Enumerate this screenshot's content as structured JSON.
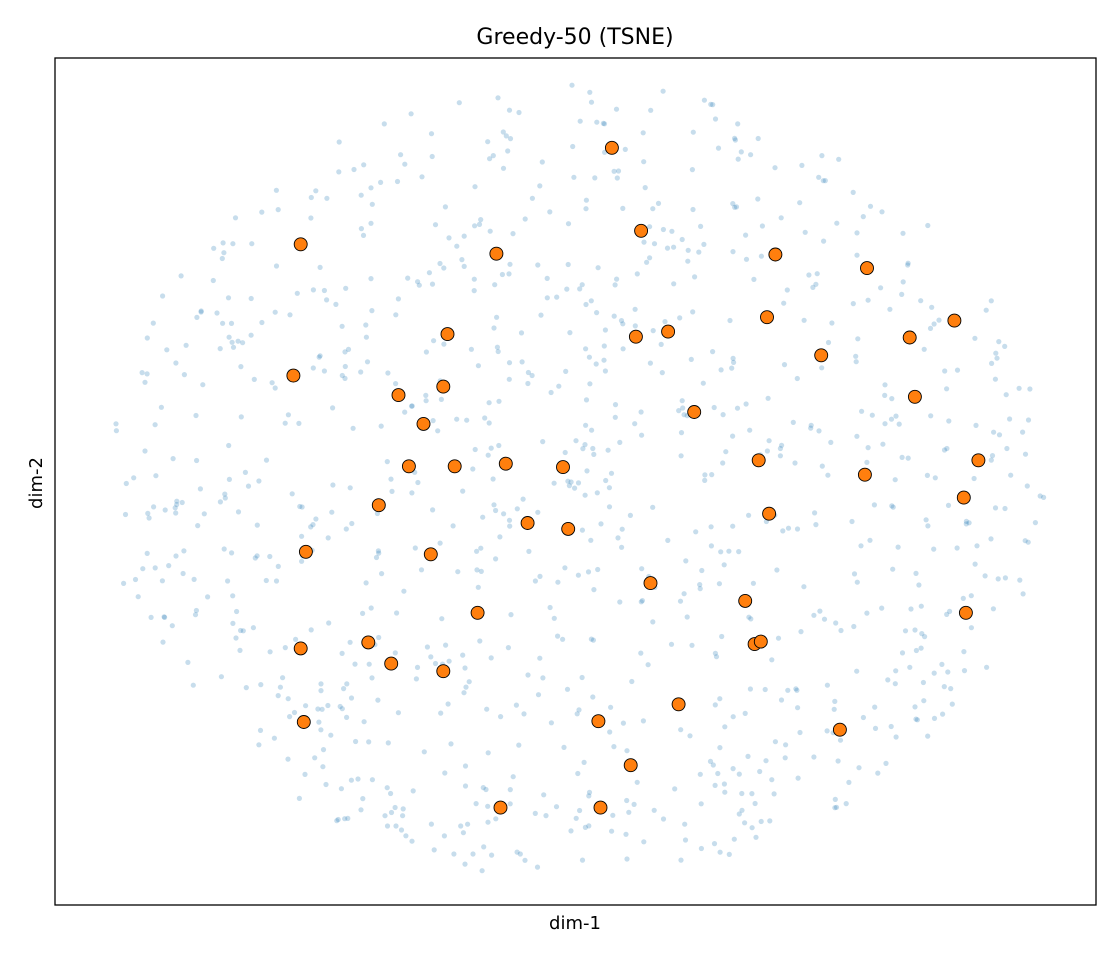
{
  "chart_data": {
    "type": "scatter",
    "title": "Greedy-50 (TSNE)",
    "xlabel": "dim-1",
    "ylabel": "dim-2",
    "xlim": [
      0,
      1000
    ],
    "ylim": [
      0,
      1000
    ],
    "grid": false,
    "ticks": false,
    "series": [
      {
        "role": "all-points",
        "color": "#1f77b4",
        "opacity": 0.25,
        "count": 1000,
        "distribution": "roughly uniform within an ellipse",
        "ellipse": {
          "cx": 500,
          "cy": 500,
          "rx": 450,
          "ry": 470
        }
      },
      {
        "role": "selected",
        "color": "#ff7f0e",
        "edgecolor": "#000000",
        "points": [
          [
            535,
            894
          ],
          [
            563,
            796
          ],
          [
            236,
            780
          ],
          [
            424,
            769
          ],
          [
            692,
            768
          ],
          [
            780,
            752
          ],
          [
            864,
            690
          ],
          [
            684,
            694
          ],
          [
            377,
            674
          ],
          [
            558,
            671
          ],
          [
            589,
            677
          ],
          [
            821,
            670
          ],
          [
            736,
            649
          ],
          [
            229,
            625
          ],
          [
            330,
            602
          ],
          [
            373,
            612
          ],
          [
            826,
            600
          ],
          [
            614,
            582
          ],
          [
            354,
            568
          ],
          [
            676,
            525
          ],
          [
            340,
            518
          ],
          [
            384,
            518
          ],
          [
            433,
            521
          ],
          [
            488,
            517
          ],
          [
            778,
            508
          ],
          [
            887,
            525
          ],
          [
            873,
            481
          ],
          [
            311,
            472
          ],
          [
            454,
            451
          ],
          [
            686,
            462
          ],
          [
            493,
            444
          ],
          [
            241,
            417
          ],
          [
            361,
            414
          ],
          [
            572,
            380
          ],
          [
            406,
            345
          ],
          [
            663,
            359
          ],
          [
            875,
            345
          ],
          [
            672,
            308
          ],
          [
            236,
            303
          ],
          [
            301,
            310
          ],
          [
            323,
            285
          ],
          [
            678,
            311
          ],
          [
            373,
            276
          ],
          [
            239,
            216
          ],
          [
            522,
            217
          ],
          [
            599,
            237
          ],
          [
            553,
            165
          ],
          [
            754,
            207
          ],
          [
            428,
            115
          ],
          [
            524,
            115
          ]
        ]
      }
    ]
  }
}
